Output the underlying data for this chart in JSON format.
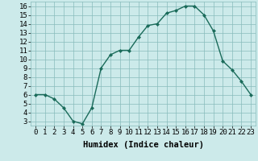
{
  "x": [
    0,
    1,
    2,
    3,
    4,
    5,
    6,
    7,
    8,
    9,
    10,
    11,
    12,
    13,
    14,
    15,
    16,
    17,
    18,
    19,
    20,
    21,
    22,
    23
  ],
  "y": [
    6.0,
    6.0,
    5.5,
    4.5,
    3.0,
    2.7,
    4.5,
    9.0,
    10.5,
    11.0,
    11.0,
    12.5,
    13.8,
    14.0,
    15.2,
    15.5,
    16.0,
    16.0,
    15.0,
    13.2,
    9.8,
    8.8,
    7.5,
    6.0
  ],
  "xlabel": "Humidex (Indice chaleur)",
  "xlim": [
    -0.5,
    23.5
  ],
  "ylim": [
    2.5,
    16.5
  ],
  "yticks": [
    3,
    4,
    5,
    6,
    7,
    8,
    9,
    10,
    11,
    12,
    13,
    14,
    15,
    16
  ],
  "xticks": [
    0,
    1,
    2,
    3,
    4,
    5,
    6,
    7,
    8,
    9,
    10,
    11,
    12,
    13,
    14,
    15,
    16,
    17,
    18,
    19,
    20,
    21,
    22,
    23
  ],
  "xtick_labels": [
    "0",
    "1",
    "2",
    "3",
    "4",
    "5",
    "6",
    "7",
    "8",
    "9",
    "10",
    "11",
    "12",
    "13",
    "14",
    "15",
    "16",
    "17",
    "18",
    "19",
    "20",
    "21",
    "22",
    "23"
  ],
  "line_color": "#1a6b5a",
  "marker_color": "#1a6b5a",
  "bg_color": "#cceaea",
  "grid_color": "#88bbbb",
  "xlabel_fontsize": 7.5,
  "tick_fontsize": 6.5,
  "linewidth": 1.0,
  "markersize": 2.0
}
